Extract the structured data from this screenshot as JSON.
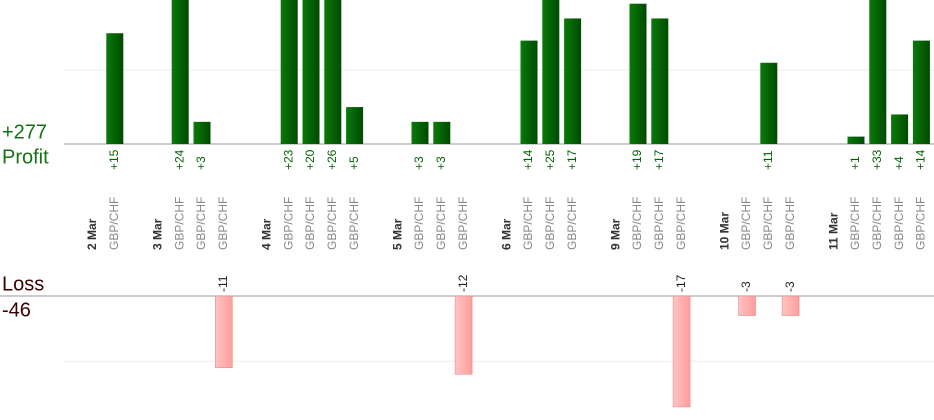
{
  "chart_data": {
    "type": "bar",
    "categories": [
      "2 Mar",
      "GBP/CHF",
      null,
      "3 Mar",
      "GBP/CHF",
      "GBP/CHF",
      "GBP/CHF",
      null,
      "4 Mar",
      "GBP/CHF",
      "GBP/CHF",
      "GBP/CHF",
      "GBP/CHF",
      null,
      "5 Mar",
      "GBP/CHF",
      "GBP/CHF",
      "GBP/CHF",
      null,
      "6 Mar",
      "GBP/CHF",
      "GBP/CHF",
      "GBP/CHF",
      null,
      "9 Mar",
      "GBP/CHF",
      "GBP/CHF",
      "GBP/CHF",
      null,
      "10 Mar",
      "GBP/CHF",
      "GBP/CHF",
      "GBP/CHF",
      null,
      "11 Mar",
      "GBP/CHF",
      "GBP/CHF",
      "GBP/CHF",
      "GBP/CHF"
    ],
    "series": [
      {
        "name": "Profit",
        "color": "#006400",
        "total": {
          "value": 277,
          "label": "+277"
        },
        "values": [
          null,
          15,
          null,
          null,
          24,
          3,
          null,
          null,
          null,
          23,
          20,
          26,
          5,
          null,
          null,
          3,
          3,
          null,
          null,
          null,
          14,
          25,
          17,
          null,
          null,
          19,
          17,
          null,
          null,
          null,
          null,
          11,
          null,
          null,
          null,
          1,
          33,
          4,
          14
        ],
        "value_labels": [
          null,
          "+15",
          null,
          null,
          "+24",
          "+3",
          null,
          null,
          null,
          "+23",
          "+20",
          "+26",
          "+5",
          null,
          null,
          "+3",
          "+3",
          null,
          null,
          null,
          "+14",
          "+25",
          "+17",
          null,
          null,
          "+19",
          "+17",
          null,
          null,
          null,
          null,
          "+11",
          null,
          null,
          null,
          "+1",
          "+33",
          "+4",
          "+14"
        ]
      },
      {
        "name": "Loss",
        "color": "#ffaaaa",
        "axis": "y2",
        "total": -46,
        "values": [
          null,
          null,
          null,
          null,
          null,
          null,
          -11,
          null,
          null,
          null,
          null,
          null,
          null,
          null,
          null,
          null,
          null,
          -12,
          null,
          null,
          null,
          null,
          null,
          null,
          null,
          null,
          null,
          -17,
          null,
          null,
          -3,
          null,
          -3,
          null,
          null,
          null,
          null,
          null,
          null
        ]
      }
    ],
    "ylim": [
      0,
      19.5
    ],
    "yticks": [
      10
    ],
    "y2lim": [
      -19,
      0
    ],
    "y2ticks": [
      -10
    ],
    "grid": true
  }
}
